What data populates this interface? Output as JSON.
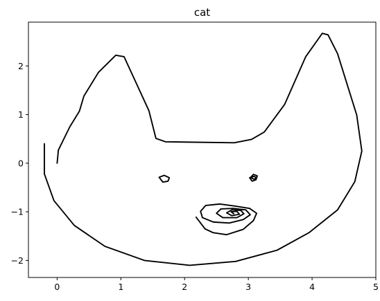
{
  "chart_data": {
    "type": "line",
    "title": "cat",
    "xlabel": "",
    "ylabel": "",
    "xlim": [
      -0.45,
      5.0
    ],
    "ylim": [
      -2.35,
      2.9
    ],
    "x_ticks": [
      0,
      1,
      2,
      3,
      4,
      5
    ],
    "y_ticks": [
      -2,
      -1,
      0,
      1,
      2
    ],
    "x_tick_labels": [
      "0",
      "1",
      "2",
      "3",
      "4",
      "5"
    ],
    "y_tick_labels": [
      "−2",
      "−1",
      "0",
      "1",
      "2"
    ],
    "grid": false,
    "line_color": "#000000",
    "series": [
      {
        "values": [
          [
            0.0,
            0.0
          ],
          [
            0.02,
            0.27
          ],
          [
            0.2,
            0.75
          ],
          [
            0.35,
            1.07
          ],
          [
            0.42,
            1.38
          ],
          [
            0.65,
            1.87
          ],
          [
            0.92,
            2.22
          ],
          [
            1.05,
            2.19
          ],
          [
            1.44,
            1.08
          ],
          [
            1.55,
            0.51
          ],
          [
            1.7,
            0.44
          ],
          [
            2.78,
            0.42
          ],
          [
            3.05,
            0.49
          ],
          [
            3.25,
            0.64
          ],
          [
            3.57,
            1.21
          ],
          [
            3.9,
            2.19
          ],
          [
            4.16,
            2.67
          ],
          [
            4.25,
            2.64
          ],
          [
            4.4,
            2.25
          ],
          [
            4.7,
            0.99
          ],
          [
            4.78,
            0.25
          ],
          [
            4.67,
            -0.38
          ],
          [
            4.4,
            -0.96
          ],
          [
            3.95,
            -1.43
          ],
          [
            3.45,
            -1.79
          ],
          [
            2.8,
            -2.02
          ],
          [
            2.08,
            -2.1
          ],
          [
            1.37,
            -2.0
          ],
          [
            0.75,
            -1.71
          ],
          [
            0.27,
            -1.28
          ],
          [
            -0.05,
            -0.77
          ],
          [
            -0.2,
            -0.22
          ],
          [
            -0.2,
            0.4
          ]
        ]
      },
      {
        "values": [
          [
            1.6,
            -0.29
          ],
          [
            1.68,
            -0.25
          ],
          [
            1.76,
            -0.3
          ],
          [
            1.74,
            -0.37
          ],
          [
            1.66,
            -0.39
          ],
          [
            1.6,
            -0.29
          ]
        ]
      },
      {
        "values": [
          [
            3.03,
            -0.3
          ],
          [
            3.08,
            -0.23
          ],
          [
            3.14,
            -0.26
          ],
          [
            3.12,
            -0.34
          ],
          [
            3.06,
            -0.37
          ],
          [
            3.02,
            -0.3
          ],
          [
            3.09,
            -0.27
          ],
          [
            3.13,
            -0.3
          ],
          [
            3.09,
            -0.33
          ],
          [
            3.04,
            -0.3
          ]
        ]
      },
      {
        "values": [
          [
            2.18,
            -1.11
          ],
          [
            2.32,
            -1.35
          ],
          [
            2.45,
            -1.43
          ],
          [
            2.66,
            -1.47
          ],
          [
            2.92,
            -1.36
          ],
          [
            3.08,
            -1.18
          ],
          [
            3.13,
            -1.03
          ],
          [
            3.02,
            -0.93
          ],
          [
            2.78,
            -0.88
          ],
          [
            2.55,
            -0.84
          ],
          [
            2.33,
            -0.87
          ],
          [
            2.25,
            -0.99
          ],
          [
            2.28,
            -1.12
          ],
          [
            2.45,
            -1.21
          ],
          [
            2.7,
            -1.23
          ],
          [
            2.92,
            -1.16
          ],
          [
            3.03,
            -1.06
          ],
          [
            2.96,
            -0.96
          ],
          [
            2.76,
            -0.93
          ],
          [
            2.57,
            -0.94
          ],
          [
            2.5,
            -1.03
          ],
          [
            2.6,
            -1.12
          ],
          [
            2.82,
            -1.12
          ],
          [
            2.93,
            -1.04
          ],
          [
            2.88,
            -0.97
          ],
          [
            2.74,
            -0.96
          ],
          [
            2.66,
            -1.02
          ],
          [
            2.74,
            -1.08
          ],
          [
            2.86,
            -1.05
          ],
          [
            2.82,
            -0.99
          ],
          [
            2.73,
            -1.0
          ],
          [
            2.77,
            -1.04
          ]
        ]
      }
    ]
  }
}
